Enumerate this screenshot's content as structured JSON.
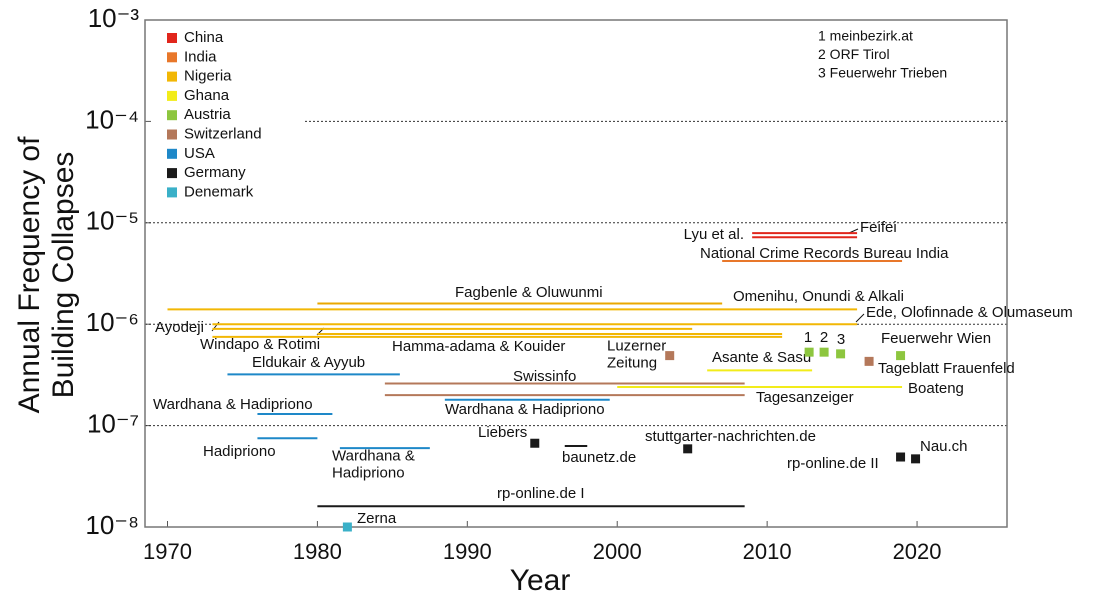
{
  "chart_data": {
    "type": "timeline",
    "x_label": "Year",
    "y_label": "Annual Frequency of\nBuilding Collapses",
    "log_y": true,
    "grid": true,
    "xlim": [
      1968.5,
      2026
    ],
    "xticks": [
      1970,
      1980,
      1990,
      2000,
      2010,
      2020
    ],
    "ylim": [
      1e-08,
      0.001
    ],
    "yticks": [
      {
        "value": 1e-08,
        "label": "10⁻⁸"
      },
      {
        "value": 1e-07,
        "label": "10⁻⁷"
      },
      {
        "value": 1e-06,
        "label": "10⁻⁶"
      },
      {
        "value": 1e-05,
        "label": "10⁻⁵"
      },
      {
        "value": 0.0001,
        "label": "10⁻⁴"
      },
      {
        "value": 0.001,
        "label": "10⁻³"
      }
    ],
    "legend": "upper left",
    "series": [
      {
        "name": "China",
        "color": "#e1261c"
      },
      {
        "name": "India",
        "color": "#e8772a"
      },
      {
        "name": "Nigeria",
        "color": "#f2b705"
      },
      {
        "name": "Ghana",
        "color": "#f2ec1a"
      },
      {
        "name": "Austria",
        "color": "#8dc63f"
      },
      {
        "name": "Switzerland",
        "color": "#b4785a"
      },
      {
        "name": "USA",
        "color": "#1e88c8"
      },
      {
        "name": "Germany",
        "color": "#1a1a1a"
      },
      {
        "name": "Denemark",
        "color": "#3ab0c8"
      }
    ],
    "notes": [
      "1 meinbezirk.at",
      "2 ORF Tirol",
      "3 Feuerwehr Trieben"
    ],
    "segments": [
      {
        "label": "Lyu et al.",
        "x": [
          2009,
          2016
        ],
        "value": 7.2e-06,
        "color": "#e1261c"
      },
      {
        "label": "Feifei",
        "x": [
          2009,
          2016
        ],
        "value": 7.9e-06,
        "color": "#e1261c"
      },
      {
        "label": "National Crime Records Bureau India",
        "x": [
          2007,
          2019
        ],
        "value": 4.2e-06,
        "color": "#e8772a"
      },
      {
        "label": "Fagbenle & Oluwunmi",
        "x": [
          1980,
          2007
        ],
        "value": 1.6e-06,
        "color": "#eaa800"
      },
      {
        "label": "Omenihu, Onundi & Alkali",
        "x": [
          1970,
          2016
        ],
        "value": 1.4e-06,
        "color": "#f2b705"
      },
      {
        "label": "Ede, Olofinnade & Olumaseum",
        "x": [
          1973,
          2016
        ],
        "value": 1e-06,
        "color": "#f2b705"
      },
      {
        "label": "Ayodeji",
        "x": [
          1973,
          2005
        ],
        "value": 9e-07,
        "color": "#f2b705"
      },
      {
        "label": "Windapo & Rotimi",
        "x": [
          1980,
          2011
        ],
        "value": 8e-07,
        "color": "#f2b705"
      },
      {
        "label": "Hamma-adama & Kouider",
        "x": [
          1973,
          2011
        ],
        "value": 7.5e-07,
        "color": "#f2b705"
      },
      {
        "label": "Asante & Sasu",
        "x": [
          2006,
          2013
        ],
        "value": 3.5e-07,
        "color": "#f2ec1a"
      },
      {
        "label": "Boateng",
        "x": [
          2000,
          2019
        ],
        "value": 2.4e-07,
        "color": "#f2ec1a"
      },
      {
        "label": "Swissinfo",
        "x": [
          1984.5,
          2008.5
        ],
        "value": 2.6e-07,
        "color": "#b4785a"
      },
      {
        "label": "Tagesanzeiger",
        "x": [
          1984.5,
          2008.5
        ],
        "value": 2e-07,
        "color": "#b4785a"
      },
      {
        "label": "Eldukair & Ayyub",
        "x": [
          1974,
          1985.5
        ],
        "value": 3.2e-07,
        "color": "#1e88c8"
      },
      {
        "label": "Wardhana & Hadipriono",
        "x": [
          1976,
          1981
        ],
        "value": 1.3e-07,
        "color": "#1e88c8"
      },
      {
        "label": "Wardhana & Hadipriono",
        "x": [
          1988.5,
          1999.5
        ],
        "value": 1.8e-07,
        "color": "#1e88c8"
      },
      {
        "label": "Hadipriono",
        "x": [
          1976,
          1980
        ],
        "value": 7.5e-08,
        "color": "#1e88c8"
      },
      {
        "label": "Wardhana &\nHadipriono",
        "x": [
          1981.5,
          1987.5
        ],
        "value": 6e-08,
        "color": "#1e88c8"
      },
      {
        "label": "rp-online.de I",
        "x": [
          1980,
          2008.5
        ],
        "value": 1.6e-08,
        "color": "#1a1a1a"
      },
      {
        "label": "baunetz.de",
        "x": [
          1996.5,
          1998
        ],
        "value": 6.3e-08,
        "color": "#1a1a1a"
      }
    ],
    "points": [
      {
        "label": "Luzerner\nZeitung",
        "x": 2003.5,
        "value": 4.9e-07,
        "color": "#b4785a"
      },
      {
        "label": "Tageblatt Frauenfeld",
        "x": 2016.8,
        "value": 4.3e-07,
        "color": "#b4785a"
      },
      {
        "label": "1",
        "x": 2012.8,
        "value": 5.3e-07,
        "color": "#8dc63f"
      },
      {
        "label": "2",
        "x": 2013.8,
        "value": 5.3e-07,
        "color": "#8dc63f"
      },
      {
        "label": "3",
        "x": 2014.9,
        "value": 5.1e-07,
        "color": "#8dc63f"
      },
      {
        "label": "Feuerwehr Wien",
        "x": 2018.9,
        "value": 4.9e-07,
        "color": "#8dc63f"
      },
      {
        "label": "Liebers",
        "x": 1994.5,
        "value": 6.7e-08,
        "color": "#1a1a1a"
      },
      {
        "label": "stuttgarter-nachrichten.de",
        "x": 2004.7,
        "value": 5.9e-08,
        "color": "#1a1a1a"
      },
      {
        "label": "rp-online.de II",
        "x": 2018.9,
        "value": 4.9e-08,
        "color": "#1a1a1a"
      },
      {
        "label": "Nau.ch",
        "x": 2019.9,
        "value": 4.7e-08,
        "color": "#1a1a1a"
      },
      {
        "label": "Zerna",
        "x": 1982,
        "value": 1e-08,
        "color": "#3ab0c8"
      }
    ]
  }
}
